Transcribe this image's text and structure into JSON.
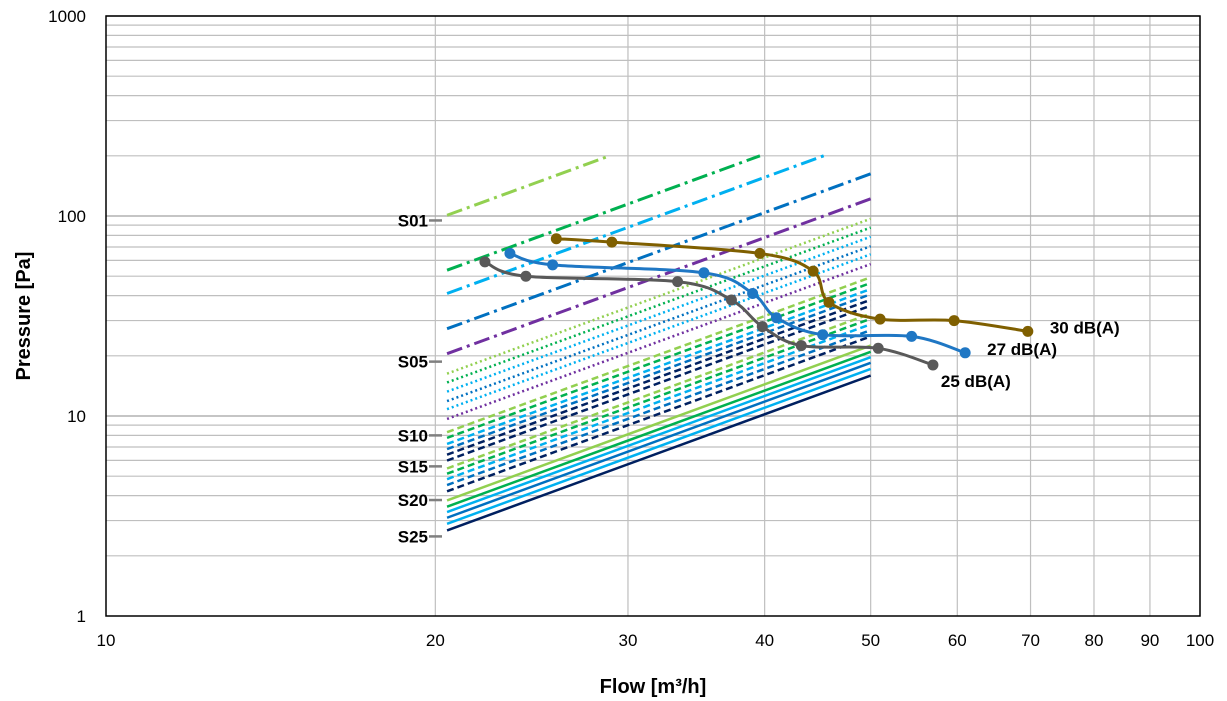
{
  "chart_data": {
    "type": "line",
    "scale": "log-log",
    "grid": true,
    "xlabel": "Flow [m³/h]",
    "ylabel": "Pressure [Pa]",
    "xlim": [
      10,
      100
    ],
    "ylim": [
      1,
      1000
    ],
    "x_ticks": [
      "10",
      "20",
      "30",
      "40",
      "50",
      "60",
      "70",
      "80",
      "90",
      "100"
    ],
    "y_ticks": [
      "1",
      "10",
      "100",
      "1000"
    ],
    "series": [
      {
        "name": "30 dB(A)",
        "color": "#7f5f00",
        "x": [
          25.8,
          29.0,
          39.6,
          44.3,
          45.8,
          51.0,
          59.6,
          69.6
        ],
        "y": [
          77,
          74,
          65,
          53,
          37,
          30.5,
          30,
          26.5
        ]
      },
      {
        "name": "27 dB(A)",
        "color": "#1f77c4",
        "x": [
          23.4,
          25.6,
          35.2,
          39.0,
          41.0,
          45.2,
          54.5,
          61.0
        ],
        "y": [
          65,
          57,
          52,
          41,
          31,
          25.5,
          25,
          20.7
        ]
      },
      {
        "name": "25 dB(A)",
        "color": "#595959",
        "x": [
          22.2,
          24.2,
          33.3,
          37.3,
          39.8,
          43.2,
          50.8,
          57.0
        ],
        "y": [
          59,
          50,
          47,
          38,
          28,
          22.5,
          21.8,
          18
        ]
      }
    ],
    "settings": {
      "labels": [
        {
          "name": "S01",
          "value": 95
        },
        {
          "name": "S05",
          "value": 18.7
        },
        {
          "name": "S10",
          "value": 8
        },
        {
          "name": "S15",
          "value": 5.6
        },
        {
          "name": "S20",
          "value": 3.8
        },
        {
          "name": "S25",
          "value": 2.5
        }
      ],
      "curves": [
        {
          "color": "#92d050",
          "style": "dashdot",
          "p20": 96
        },
        {
          "color": "#00b050",
          "style": "dashdot",
          "p20": 51
        },
        {
          "color": "#00b0f0",
          "style": "dashdot",
          "p20": 39
        },
        {
          "color": "#0070c0",
          "style": "dashdot",
          "p20": 26
        },
        {
          "color": "#7030a0",
          "style": "dashdot",
          "p20": 19.5
        },
        {
          "color": "#92d050",
          "style": "dot",
          "p20": 15.5
        },
        {
          "color": "#00b050",
          "style": "dot",
          "p20": 14
        },
        {
          "color": "#00b0f0",
          "style": "dot",
          "p20": 12.6
        },
        {
          "color": "#0070c0",
          "style": "dot",
          "p20": 11.3
        },
        {
          "color": "#00b0f0",
          "style": "dot",
          "p20": 10.3
        },
        {
          "color": "#7030a0",
          "style": "dot",
          "p20": 9.2
        },
        {
          "color": "#92d050",
          "style": "dash",
          "p20": 7.9
        },
        {
          "color": "#00b050",
          "style": "dash",
          "p20": 7.4
        },
        {
          "color": "#00b0f0",
          "style": "dash",
          "p20": 6.9
        },
        {
          "color": "#0070c0",
          "style": "dash",
          "p20": 6.5
        },
        {
          "color": "#002060",
          "style": "dash",
          "p20": 6.1
        },
        {
          "color": "#002060",
          "style": "dash",
          "p20": 5.7
        },
        {
          "color": "#92d050",
          "style": "dash",
          "p20": 5.2
        },
        {
          "color": "#00b050",
          "style": "dash",
          "p20": 4.9
        },
        {
          "color": "#00b0f0",
          "style": "dash",
          "p20": 4.6
        },
        {
          "color": "#0070c0",
          "style": "dash",
          "p20": 4.3
        },
        {
          "color": "#002060",
          "style": "dash",
          "p20": 4.0
        },
        {
          "color": "#92d050",
          "style": "solid",
          "p20": 3.6
        },
        {
          "color": "#00b050",
          "style": "solid",
          "p20": 3.35
        },
        {
          "color": "#00b0f0",
          "style": "solid",
          "p20": 3.15
        },
        {
          "color": "#0070c0",
          "style": "solid",
          "p20": 2.95
        },
        {
          "color": "#00b0f0",
          "style": "solid",
          "p20": 2.75
        },
        {
          "color": "#002060",
          "style": "solid",
          "p20": 2.55
        }
      ]
    }
  }
}
